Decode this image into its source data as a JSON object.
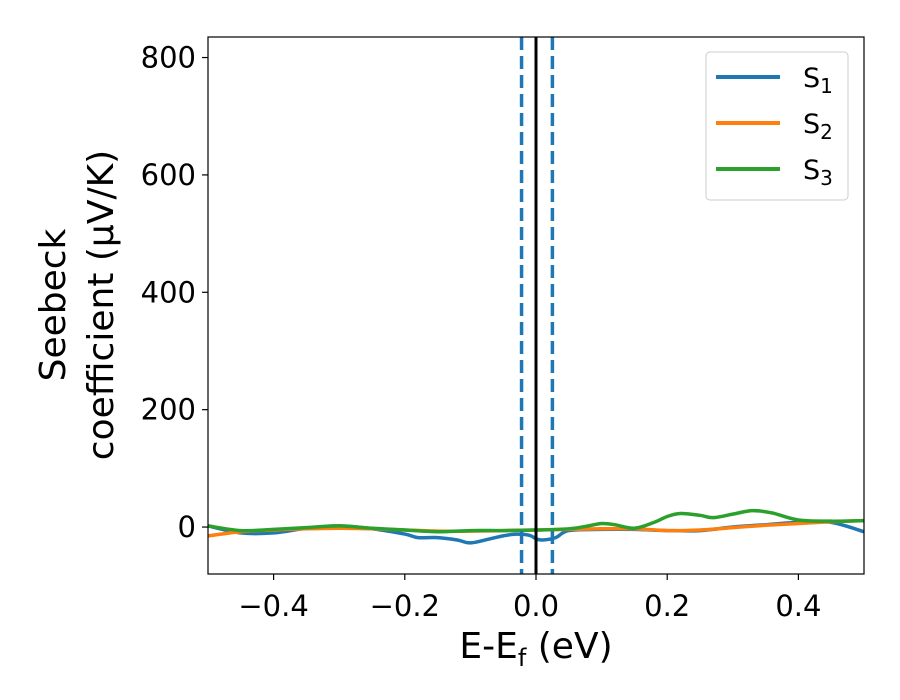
{
  "chart_data": {
    "type": "line",
    "xlabel": "E-E",
    "xlabel_sub": "f",
    "xlabel_unit": " (eV)",
    "ylabel_line1": "Seebeck",
    "ylabel_line2": "coefficient  (μV/K)",
    "xlim": [
      -0.5,
      0.5
    ],
    "ylim": [
      -80,
      835
    ],
    "xticks": [
      -0.4,
      -0.2,
      0.0,
      0.2,
      0.4
    ],
    "xtick_labels": [
      "−0.4",
      "−0.2",
      "0.0",
      "0.2",
      "0.4"
    ],
    "yticks": [
      0,
      200,
      400,
      600,
      800
    ],
    "ytick_labels": [
      "0",
      "200",
      "400",
      "600",
      "800"
    ],
    "grid": false,
    "legend_position": "top-right",
    "vertical_lines": [
      {
        "x": 0.0,
        "style": "solid",
        "color": "#000000"
      },
      {
        "x": -0.022,
        "style": "dashed",
        "color": "#1f77b4"
      },
      {
        "x": 0.025,
        "style": "dashed",
        "color": "#1f77b4"
      }
    ],
    "series": [
      {
        "name": "S",
        "sub": "1",
        "color": "#1f77b4",
        "x": [
          -0.5,
          -0.45,
          -0.4,
          -0.35,
          -0.3,
          -0.25,
          -0.2,
          -0.18,
          -0.15,
          -0.12,
          -0.1,
          -0.07,
          -0.05,
          -0.03,
          -0.01,
          0.0,
          0.01,
          0.03,
          0.05,
          0.1,
          0.15,
          0.2,
          0.25,
          0.3,
          0.35,
          0.4,
          0.45,
          0.5
        ],
        "y": [
          2,
          -10,
          -10,
          -2,
          2,
          -3,
          -12,
          -18,
          -18,
          -22,
          -27,
          -20,
          -15,
          -12,
          -14,
          -20,
          -22,
          -18,
          -6,
          -4,
          -4,
          -6,
          -6,
          0,
          4,
          8,
          8,
          -8
        ]
      },
      {
        "name": "S",
        "sub": "2",
        "color": "#ff7f0e",
        "x": [
          -0.5,
          -0.45,
          -0.4,
          -0.35,
          -0.3,
          -0.25,
          -0.2,
          -0.15,
          -0.1,
          -0.05,
          0.0,
          0.05,
          0.1,
          0.15,
          0.2,
          0.25,
          0.3,
          0.35,
          0.4,
          0.45,
          0.5
        ],
        "y": [
          -15,
          -8,
          -5,
          -3,
          -2,
          -3,
          -5,
          -7,
          -7,
          -6,
          -5,
          -4,
          -3,
          -3,
          -6,
          -5,
          -1,
          3,
          6,
          9,
          11
        ]
      },
      {
        "name": "S",
        "sub": "3",
        "color": "#2ca02c",
        "x": [
          -0.5,
          -0.45,
          -0.4,
          -0.35,
          -0.3,
          -0.25,
          -0.2,
          -0.15,
          -0.1,
          -0.05,
          0.0,
          0.05,
          0.08,
          0.1,
          0.12,
          0.15,
          0.18,
          0.2,
          0.22,
          0.25,
          0.27,
          0.3,
          0.33,
          0.36,
          0.4,
          0.45,
          0.5
        ],
        "y": [
          2,
          -6,
          -4,
          -1,
          2,
          -2,
          -5,
          -8,
          -6,
          -6,
          -5,
          -3,
          2,
          6,
          4,
          -2,
          8,
          18,
          23,
          20,
          16,
          22,
          28,
          24,
          12,
          10,
          11
        ]
      }
    ]
  }
}
